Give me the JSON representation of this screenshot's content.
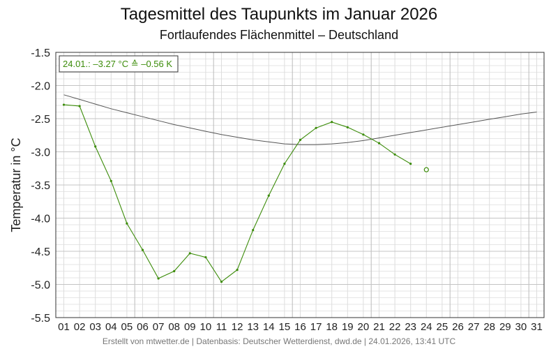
{
  "chart_data": {
    "type": "line",
    "title": "Tagesmittel des Taupunkts im Januar 2026",
    "subtitle": "Fortlaufendes Flächenmittel – Deutschland",
    "ylabel": "Temperatur in °C",
    "xlabel": "",
    "ylim": [
      -5.5,
      -1.5
    ],
    "ytick_values": [
      -1.5,
      -2.0,
      -2.5,
      -3.0,
      -3.5,
      -4.0,
      -4.5,
      -5.0,
      -5.5
    ],
    "ytick_labels": [
      "-1.5",
      "-2.0",
      "-2.5",
      "-3.0",
      "-3.5",
      "-4.0",
      "-4.5",
      "-5.0",
      "-5.5"
    ],
    "categories": [
      "01",
      "02",
      "03",
      "04",
      "05",
      "06",
      "07",
      "08",
      "09",
      "10",
      "11",
      "12",
      "13",
      "14",
      "15",
      "16",
      "17",
      "18",
      "19",
      "20",
      "21",
      "22",
      "23",
      "24",
      "25",
      "26",
      "27",
      "28",
      "29",
      "30",
      "31"
    ],
    "grid": true,
    "series": [
      {
        "color": "#555555",
        "values": [
          -2.14,
          -2.21,
          -2.28,
          -2.35,
          -2.41,
          -2.47,
          -2.53,
          -2.59,
          -2.64,
          -2.69,
          -2.74,
          -2.78,
          -2.82,
          -2.85,
          -2.88,
          -2.89,
          -2.89,
          -2.88,
          -2.86,
          -2.83,
          -2.79,
          -2.75,
          -2.71,
          -2.67,
          -2.63,
          -2.59,
          -2.55,
          -2.51,
          -2.47,
          -2.43,
          -2.4
        ]
      },
      {
        "color": "#3c8c0a",
        "values": [
          -2.29,
          -2.31,
          -2.92,
          -3.44,
          -4.08,
          -4.48,
          -4.91,
          -4.8,
          -4.53,
          -4.59,
          -4.96,
          -4.78,
          -4.18,
          -3.66,
          -3.18,
          -2.82,
          -2.64,
          -2.55,
          -2.63,
          -2.74,
          -2.87,
          -3.04,
          -3.18,
          null,
          null,
          null,
          null,
          null,
          null,
          null,
          null
        ]
      }
    ],
    "marker": {
      "category": "24",
      "value": -3.27,
      "color": "#3c8c0a"
    },
    "annotation": {
      "text": "24.01.: –3.27 °C ≙ –0.56 K",
      "color": "#3c8c0a",
      "position": "top-left"
    }
  },
  "footer": "Erstellt von mtwetter.de | Datenbasis: Deutscher Wetterdienst, dwd.de | 24.01.2026, 13:41 UTC"
}
